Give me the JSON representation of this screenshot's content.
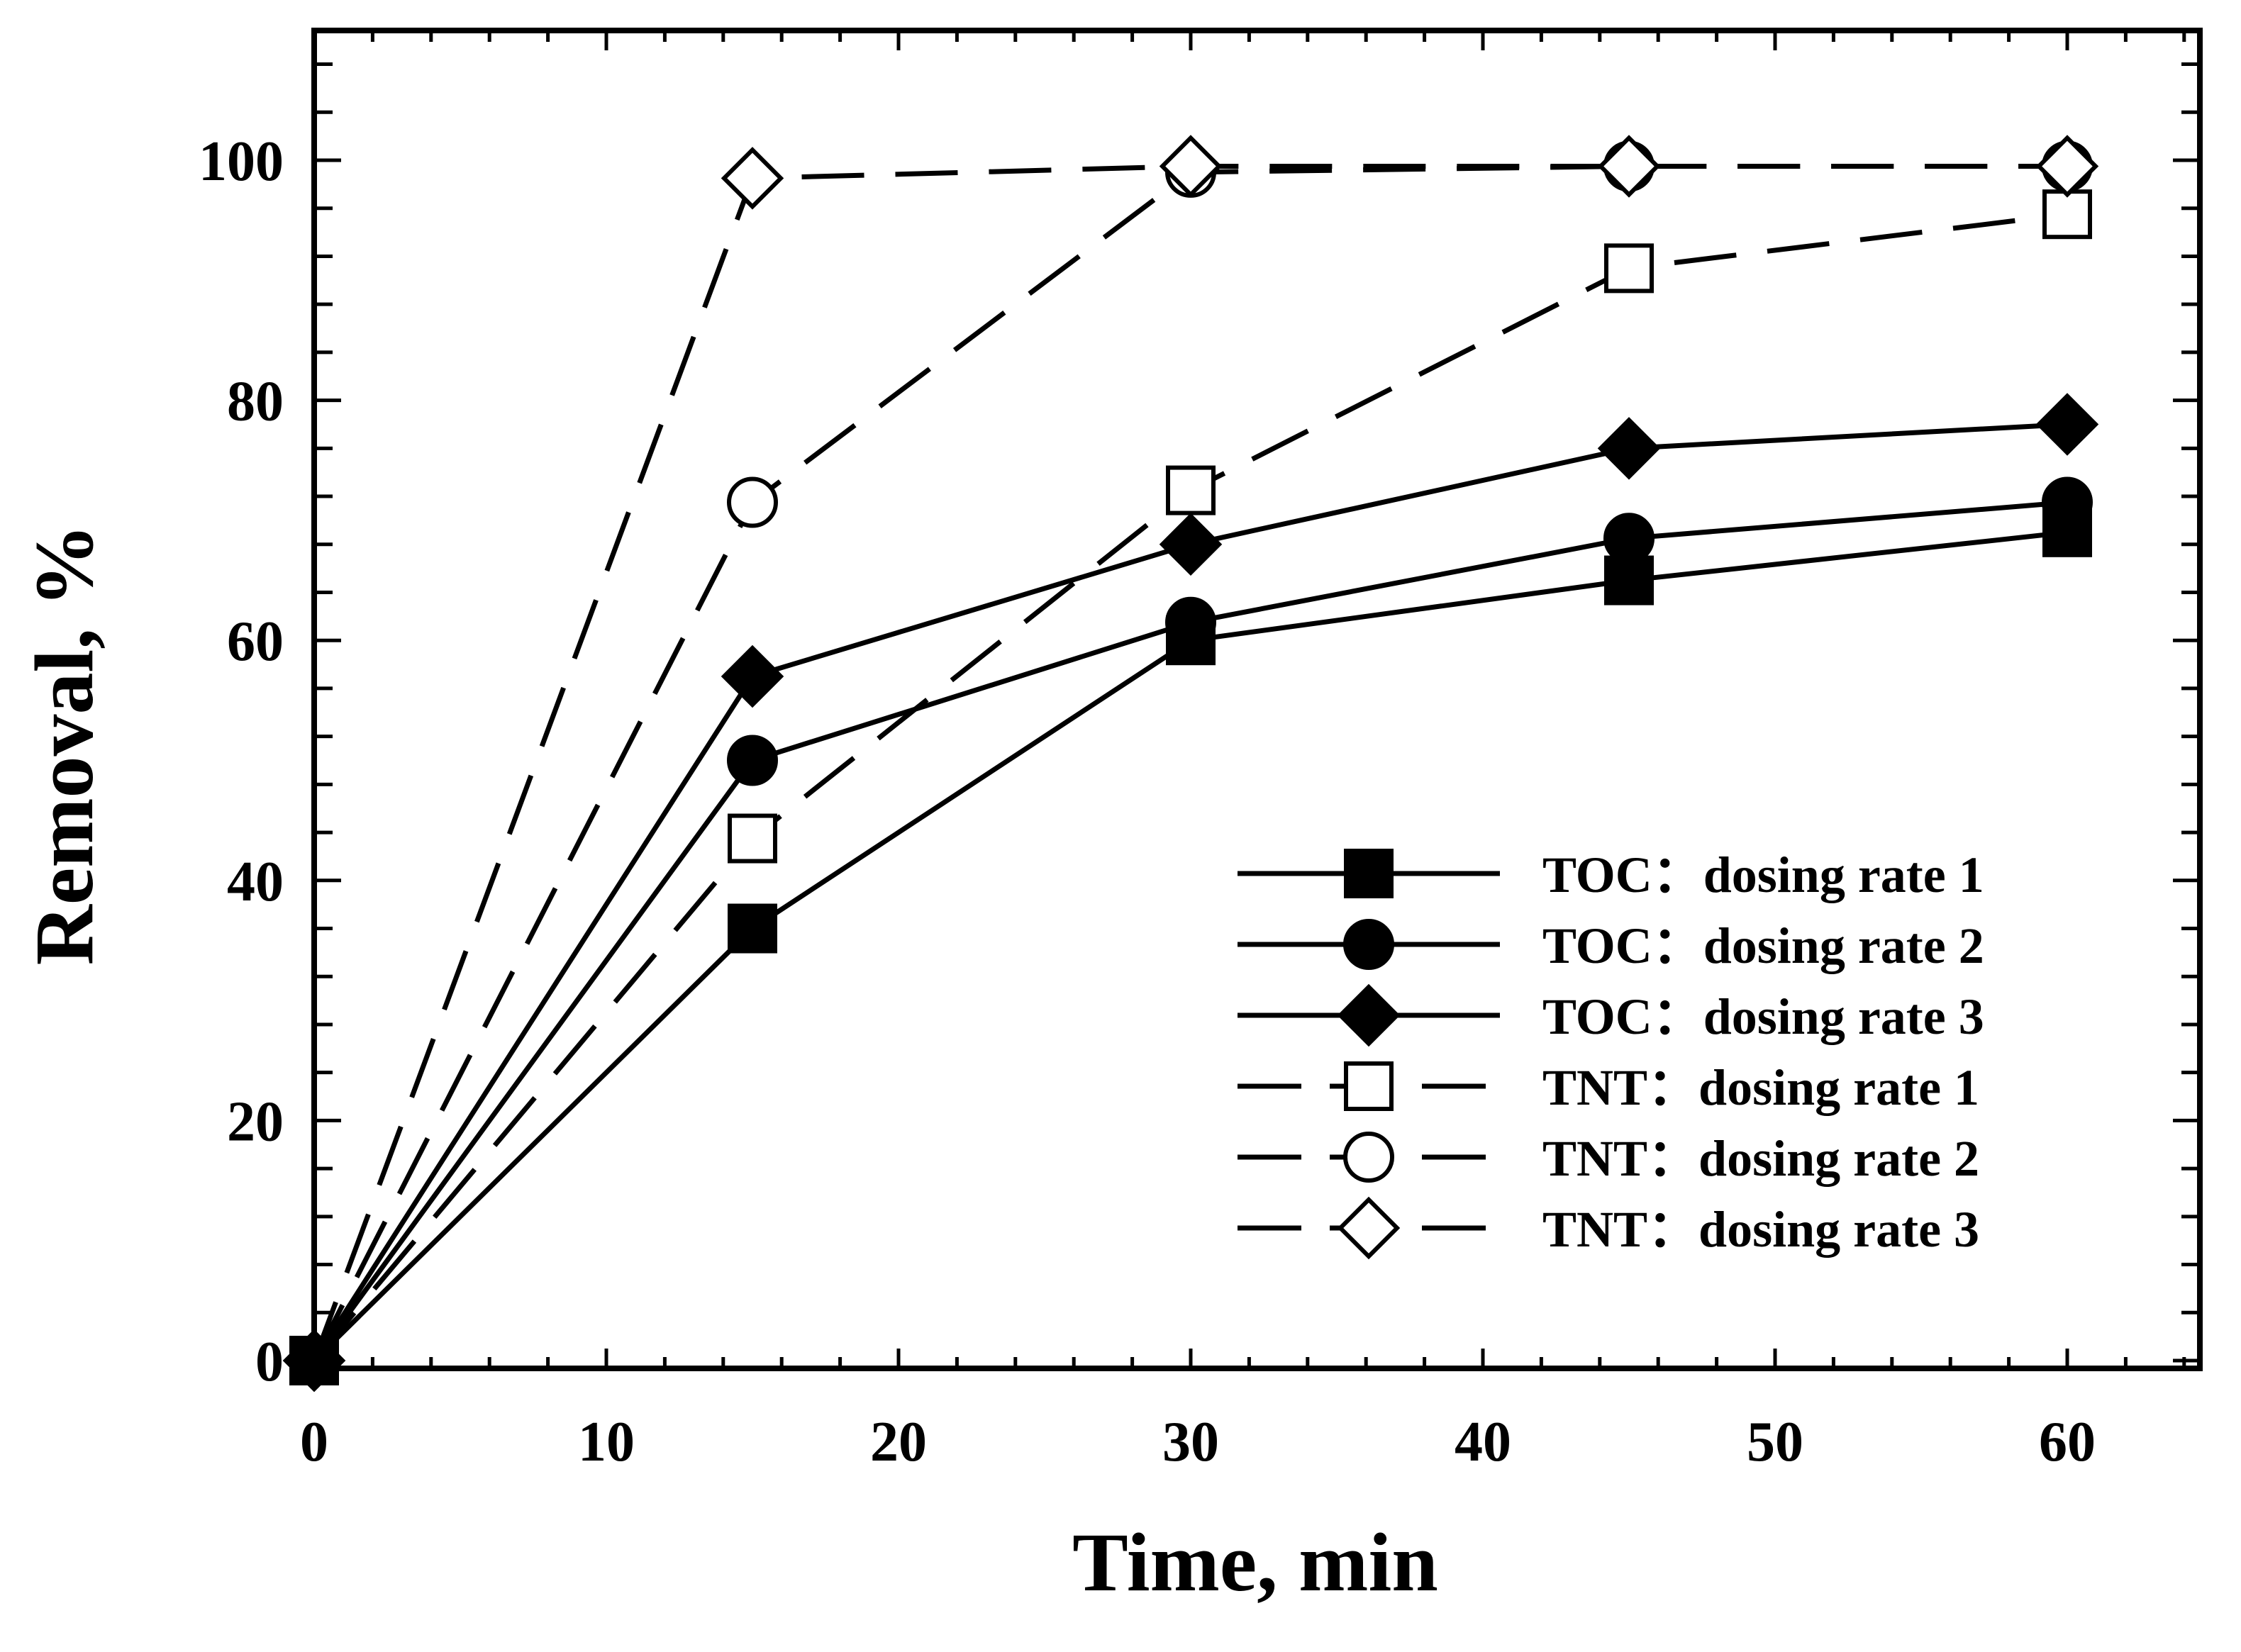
{
  "chart_data": {
    "type": "line",
    "title": "",
    "xlabel": "Time, min",
    "ylabel": "Removal, %",
    "xlim": [
      0,
      65
    ],
    "ylim": [
      0,
      110
    ],
    "xticks": [
      0,
      10,
      20,
      30,
      40,
      50,
      60
    ],
    "yticks": [
      0,
      20,
      40,
      60,
      80,
      100
    ],
    "x_minor_step": 2,
    "y_minor_step": 4,
    "grid": false,
    "legend_position": "lower-right",
    "colors": {
      "line": "#000000",
      "background": "#ffffff"
    },
    "series": [
      {
        "name": "TOC：dosing rate 1",
        "style": "solid",
        "marker": "square",
        "filled": true,
        "x": [
          0,
          15,
          30,
          45,
          60
        ],
        "y": [
          0,
          36,
          60,
          65,
          69
        ]
      },
      {
        "name": "TOC：dosing rate 2",
        "style": "solid",
        "marker": "circle",
        "filled": true,
        "x": [
          0,
          15,
          30,
          45,
          60
        ],
        "y": [
          0,
          50,
          61.5,
          68.5,
          71.5
        ]
      },
      {
        "name": "TOC：dosing rate 3",
        "style": "solid",
        "marker": "diamond",
        "filled": true,
        "x": [
          0,
          15,
          30,
          45,
          60
        ],
        "y": [
          0,
          57,
          68,
          76,
          78
        ]
      },
      {
        "name": "TNT：dosing rate 1",
        "style": "dashed",
        "marker": "square",
        "filled": false,
        "x": [
          0,
          15,
          30,
          45,
          60
        ],
        "y": [
          0,
          43.5,
          72.5,
          91,
          95.5
        ]
      },
      {
        "name": "TNT：dosing rate 2",
        "style": "dashed",
        "marker": "circle",
        "filled": false,
        "x": [
          0,
          15,
          30,
          45,
          60
        ],
        "y": [
          0,
          71.5,
          99,
          99.5,
          99.5
        ]
      },
      {
        "name": "TNT：dosing rate 3",
        "style": "dashed",
        "marker": "diamond",
        "filled": false,
        "x": [
          0,
          15,
          30,
          45,
          60
        ],
        "y": [
          0,
          98.5,
          99.5,
          99.5,
          99.5
        ]
      }
    ]
  }
}
